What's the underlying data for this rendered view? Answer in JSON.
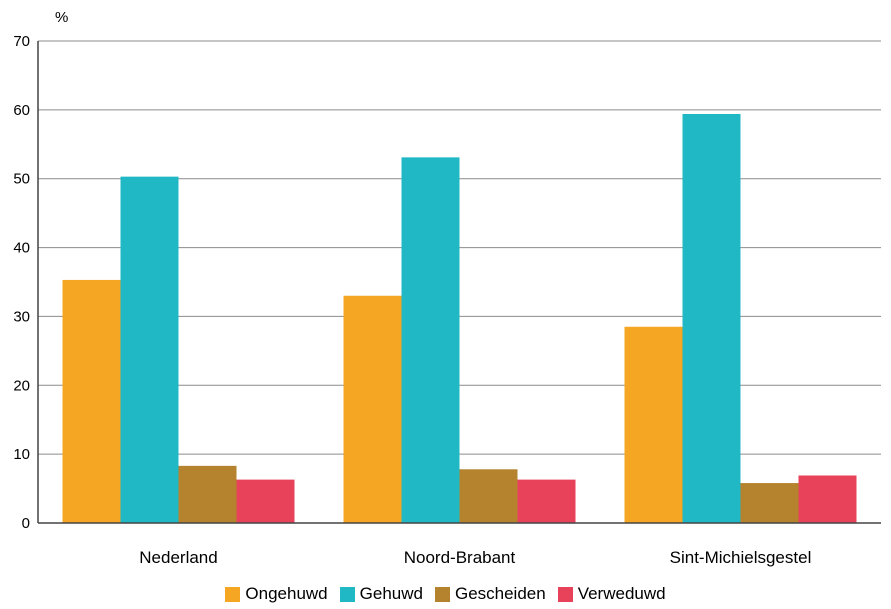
{
  "chart_data": {
    "type": "bar",
    "ylabel": "%",
    "ylim": [
      0,
      70
    ],
    "yticks": [
      0,
      10,
      20,
      30,
      40,
      50,
      60,
      70
    ],
    "categories": [
      "Nederland",
      "Noord-Brabant",
      "Sint-Michielsgestel"
    ],
    "series": [
      {
        "name": "Ongehuwd",
        "color": "#F5A623",
        "values": [
          35.3,
          33.0,
          28.5
        ]
      },
      {
        "name": "Gehuwd",
        "color": "#1FB8C4",
        "values": [
          50.3,
          53.1,
          59.4
        ]
      },
      {
        "name": "Gescheiden",
        "color": "#B5822D",
        "values": [
          8.3,
          7.8,
          5.8
        ]
      },
      {
        "name": "Verweduwd",
        "color": "#E8425A",
        "values": [
          6.3,
          6.3,
          6.9
        ]
      }
    ],
    "grid": true,
    "legend_position": "bottom"
  }
}
